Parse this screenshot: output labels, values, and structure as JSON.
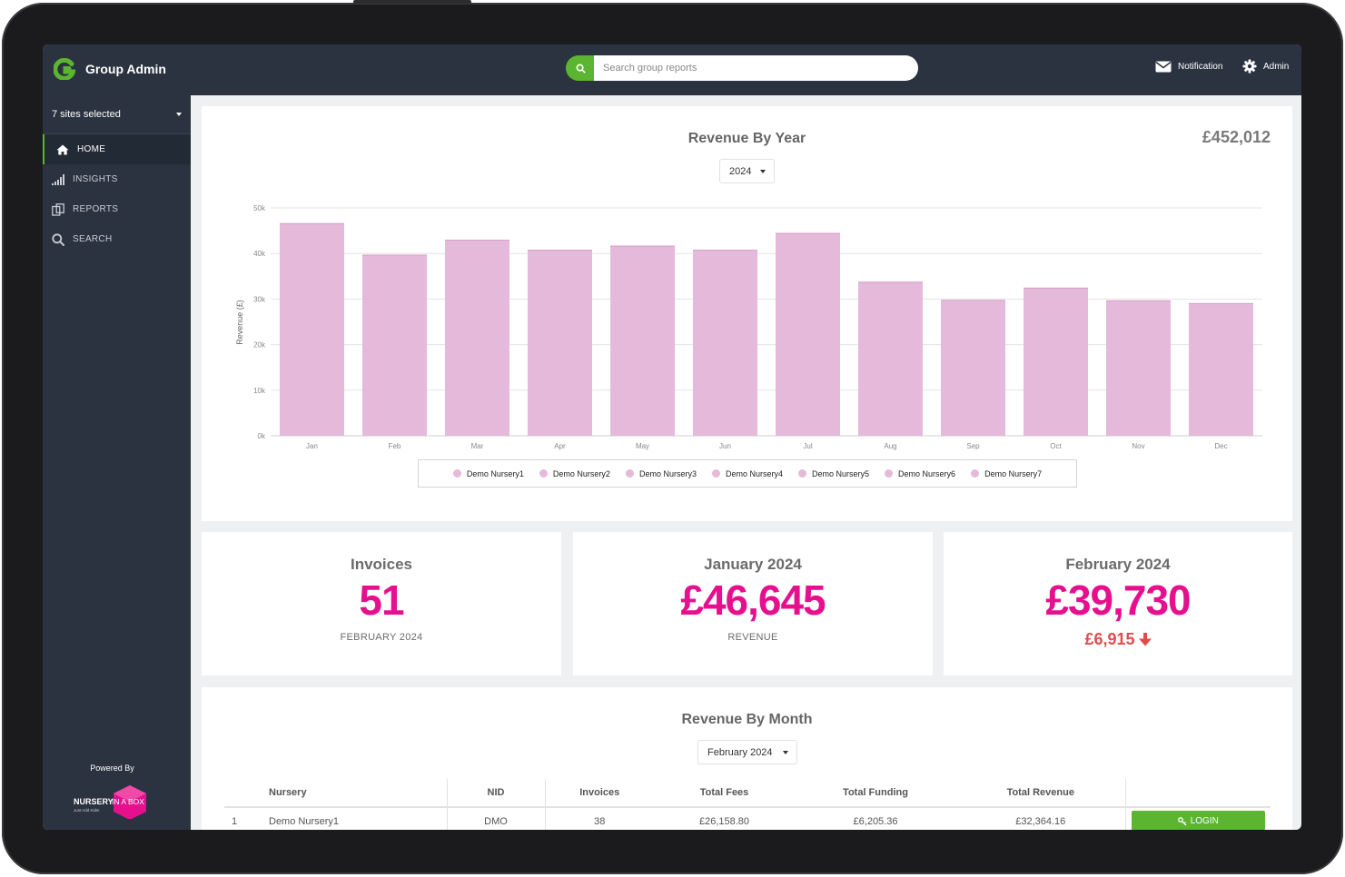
{
  "header": {
    "title": "Group Admin",
    "search_placeholder": "Search group reports",
    "notification_label": "Notification",
    "admin_label": "Admin"
  },
  "sidebar": {
    "site_selector": "7 sites selected",
    "items": [
      {
        "label": "HOME",
        "icon": "home-icon",
        "active": true
      },
      {
        "label": "INSIGHTS",
        "icon": "bar-signal-icon",
        "active": false
      },
      {
        "label": "REPORTS",
        "icon": "reports-icon",
        "active": false
      },
      {
        "label": "SEARCH",
        "icon": "search-icon",
        "active": false
      }
    ],
    "powered_by": "Powered By",
    "partner_logo": {
      "word1": "NURSERY",
      "word2": "IN A BOX",
      "tagline": "Just Add Kids!"
    }
  },
  "revenue_by_year": {
    "title": "Revenue By Year",
    "year_selected": "2024",
    "total": "£452,012"
  },
  "chart_data": {
    "type": "bar",
    "stacked": true,
    "ylabel": "Revenue (£)",
    "ylim": [
      0,
      50000
    ],
    "yticks": [
      "0k",
      "10k",
      "20k",
      "30k",
      "40k",
      "50k"
    ],
    "categories": [
      "Jan",
      "Feb",
      "Mar",
      "Apr",
      "May",
      "Jun",
      "Jul",
      "Aug",
      "Sep",
      "Oct",
      "Nov",
      "Dec"
    ],
    "totals": [
      46645,
      39730,
      43000,
      40800,
      41700,
      40800,
      44500,
      33800,
      29800,
      32500,
      29700,
      29100
    ],
    "series_names": [
      "Demo Nursery1",
      "Demo Nursery2",
      "Demo Nursery3",
      "Demo Nursery4",
      "Demo Nursery5",
      "Demo Nursery6",
      "Demo Nursery7"
    ],
    "bar_color": "#e5b9d9",
    "grid": true,
    "legend_position": "bottom"
  },
  "stats": [
    {
      "title": "Invoices",
      "value": "51",
      "sub": "FEBRUARY 2024"
    },
    {
      "title": "January 2024",
      "value": "£46,645",
      "sub": "REVENUE"
    },
    {
      "title": "February 2024",
      "value": "£39,730",
      "change": "£6,915",
      "change_direction": "down"
    }
  ],
  "revenue_by_month": {
    "title": "Revenue By Month",
    "month_selected": "February 2024",
    "columns": [
      "",
      "Nursery",
      "NID",
      "Invoices",
      "Total Fees",
      "Total Funding",
      "Total Revenue",
      ""
    ],
    "rows": [
      {
        "index": "1",
        "nursery": "Demo Nursery1",
        "nid": "DMO",
        "invoices": "38",
        "fees": "£26,158.80",
        "funding": "£6,205.36",
        "revenue": "£32,364.16",
        "action": "LOGIN"
      }
    ]
  },
  "colors": {
    "accent_green": "#5cb531",
    "brand_pink": "#e6108f",
    "sidebar_bg": "#2b3340",
    "bar_pink": "#e5b9d9",
    "down_red": "#e34a4a"
  }
}
